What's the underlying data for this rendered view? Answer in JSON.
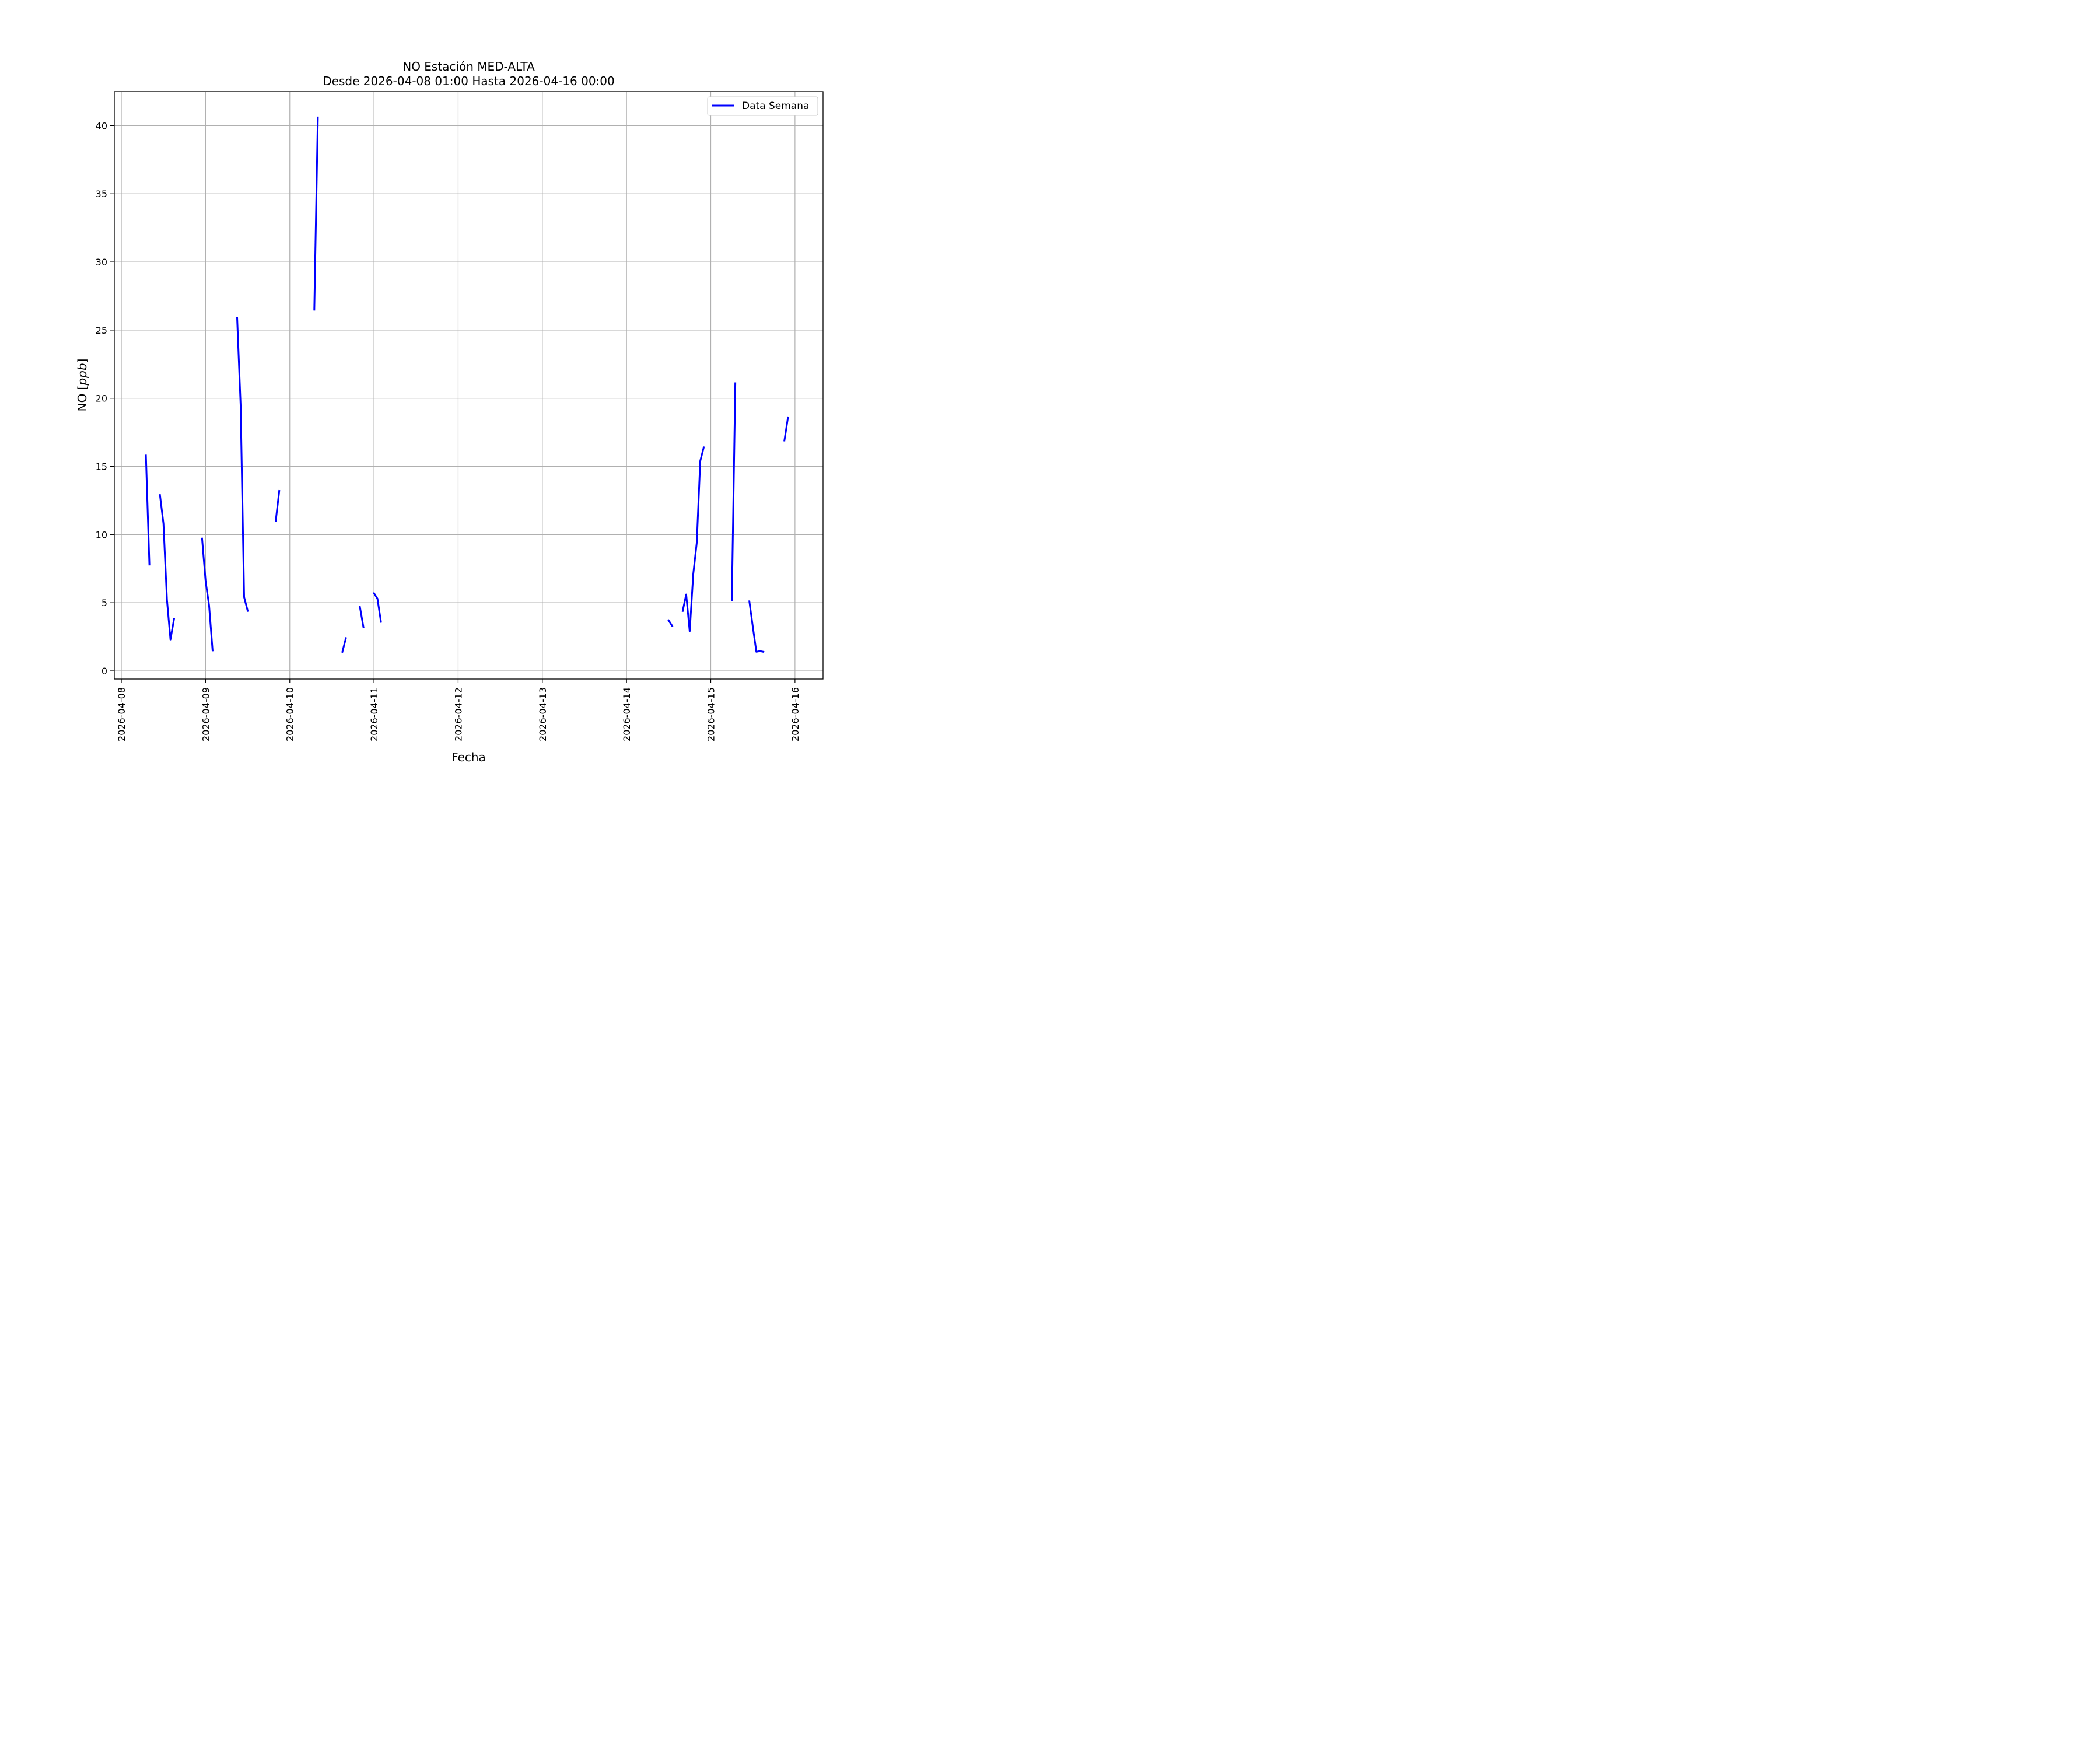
{
  "chart_data": {
    "type": "line",
    "title_line1": "NO Estación MED-ALTA",
    "title_line2": "Desde 2026-04-08 01:00 Hasta 2026-04-16 00:00",
    "xlabel": "Fecha",
    "ylabel_prefix": "NO [",
    "ylabel_unit": "ppb",
    "ylabel_suffix": "]",
    "xlim": [
      "2026-04-07 22:00",
      "2026-04-16 08:00"
    ],
    "ylim": [
      -0.6,
      42.5
    ],
    "x_ticks": [
      "2026-04-08",
      "2026-04-09",
      "2026-04-10",
      "2026-04-11",
      "2026-04-12",
      "2026-04-13",
      "2026-04-14",
      "2026-04-15",
      "2026-04-16"
    ],
    "y_ticks": [
      0,
      5,
      10,
      15,
      20,
      25,
      30,
      35,
      40
    ],
    "grid": true,
    "legend_position": "top-right",
    "series": [
      {
        "name": "Data Semana",
        "color": "#0000ff",
        "segments": [
          [
            [
              "2026-04-08 07:00",
              15.8
            ],
            [
              "2026-04-08 08:00",
              7.8
            ]
          ],
          [
            [
              "2026-04-08 11:00",
              12.9
            ],
            [
              "2026-04-08 12:00",
              10.8
            ],
            [
              "2026-04-08 13:00",
              5.2
            ],
            [
              "2026-04-08 14:00",
              2.3
            ],
            [
              "2026-04-08 15:00",
              3.8
            ]
          ],
          [
            [
              "2026-04-08 23:00",
              9.7
            ],
            [
              "2026-04-09 00:00",
              6.6
            ],
            [
              "2026-04-09 01:00",
              4.8
            ],
            [
              "2026-04-09 02:00",
              1.5
            ]
          ],
          [
            [
              "2026-04-09 09:00",
              25.9
            ],
            [
              "2026-04-09 10:00",
              19.5
            ],
            [
              "2026-04-09 11:00",
              5.4
            ],
            [
              "2026-04-09 12:00",
              4.4
            ]
          ],
          [
            [
              "2026-04-09 20:00",
              11.0
            ],
            [
              "2026-04-09 21:00",
              13.2
            ]
          ],
          [
            [
              "2026-04-10 07:00",
              26.5
            ],
            [
              "2026-04-10 08:00",
              40.6
            ]
          ],
          [
            [
              "2026-04-10 15:00",
              1.4
            ],
            [
              "2026-04-10 16:00",
              2.4
            ]
          ],
          [
            [
              "2026-04-10 20:00",
              4.7
            ],
            [
              "2026-04-10 21:00",
              3.2
            ]
          ],
          [
            [
              "2026-04-11 00:00",
              5.7
            ],
            [
              "2026-04-11 01:00",
              5.3
            ],
            [
              "2026-04-11 02:00",
              3.6
            ]
          ],
          [
            [
              "2026-04-14 12:00",
              3.7
            ],
            [
              "2026-04-14 13:00",
              3.3
            ]
          ],
          [
            [
              "2026-04-14 16:00",
              4.4
            ],
            [
              "2026-04-14 17:00",
              5.6
            ],
            [
              "2026-04-14 18:00",
              2.9
            ],
            [
              "2026-04-14 19:00",
              7.1
            ],
            [
              "2026-04-14 20:00",
              9.4
            ],
            [
              "2026-04-14 21:00",
              15.4
            ],
            [
              "2026-04-14 22:00",
              16.4
            ]
          ],
          [
            [
              "2026-04-15 06:00",
              5.2
            ],
            [
              "2026-04-15 07:00",
              21.1
            ]
          ],
          [
            [
              "2026-04-15 11:00",
              5.1
            ],
            [
              "2026-04-15 12:00",
              3.2
            ],
            [
              "2026-04-15 13:00",
              1.4
            ],
            [
              "2026-04-15 14:00",
              1.45
            ],
            [
              "2026-04-15 15:00",
              1.4
            ]
          ],
          [
            [
              "2026-04-15 21:00",
              16.9
            ],
            [
              "2026-04-15 22:00",
              18.6
            ]
          ]
        ]
      }
    ]
  }
}
